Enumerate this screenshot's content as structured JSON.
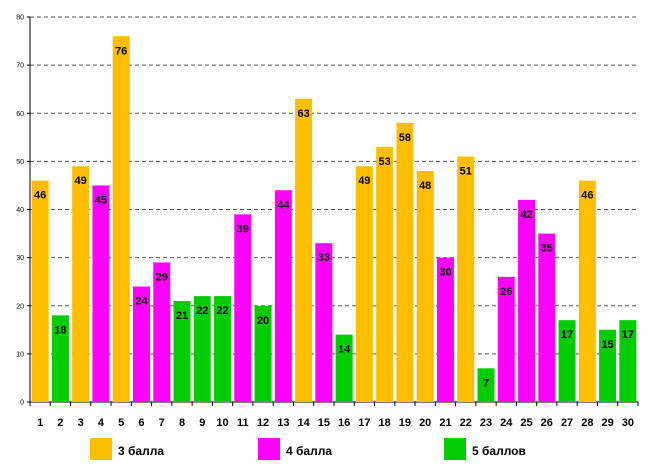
{
  "chart_data": {
    "type": "bar",
    "title": "",
    "xlabel": "",
    "ylabel": "",
    "ylim": [
      0,
      80
    ],
    "y_ticks": [
      "0",
      "10",
      "20",
      "30",
      "40",
      "50",
      "60",
      "70",
      "80"
    ],
    "grid": true,
    "legend_position": "bottom",
    "categories": [
      "1",
      "2",
      "3",
      "4",
      "5",
      "6",
      "7",
      "8",
      "9",
      "10",
      "11",
      "12",
      "13",
      "14",
      "15",
      "16",
      "17",
      "18",
      "19",
      "20",
      "21",
      "22",
      "23",
      "24",
      "25",
      "26",
      "27",
      "28",
      "29",
      "30"
    ],
    "values": [
      46,
      18,
      49,
      45,
      76,
      24,
      29,
      21,
      22,
      22,
      39,
      20,
      44,
      63,
      33,
      14,
      49,
      53,
      58,
      48,
      30,
      51,
      7,
      26,
      42,
      35,
      17,
      46,
      15,
      17
    ],
    "series_index": [
      0,
      2,
      0,
      1,
      0,
      1,
      1,
      2,
      2,
      2,
      1,
      2,
      1,
      0,
      1,
      2,
      0,
      0,
      0,
      0,
      1,
      0,
      2,
      1,
      1,
      1,
      2,
      0,
      2,
      2
    ],
    "series": [
      {
        "name": "3 балла",
        "color": "#FFBF00"
      },
      {
        "name": "4 балла",
        "color": "#FF00FF"
      },
      {
        "name": "5 баллов",
        "color": "#00CC00"
      }
    ]
  }
}
